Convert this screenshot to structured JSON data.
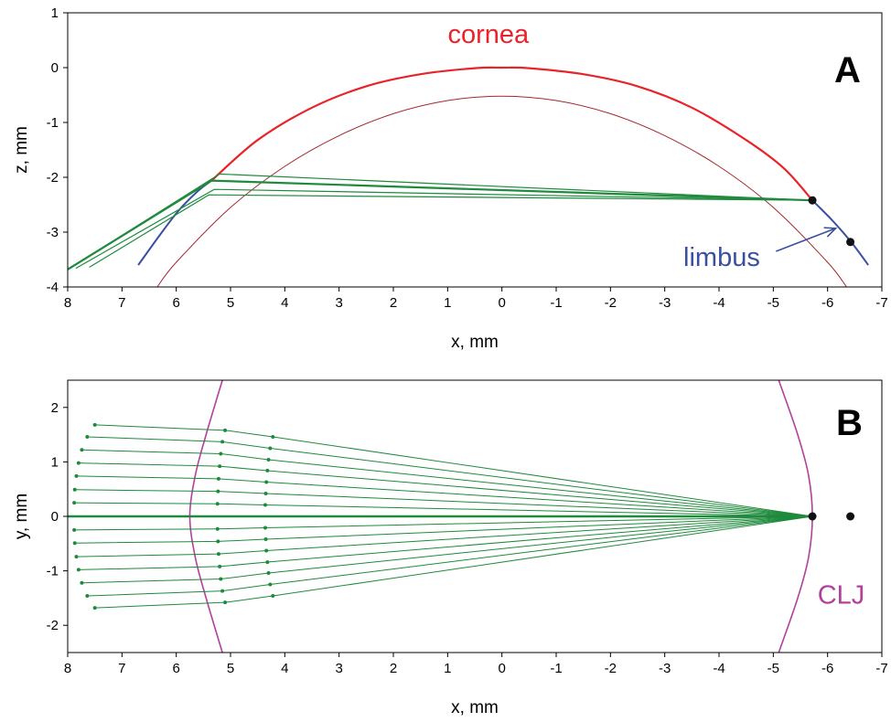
{
  "chart_data": [
    {
      "type": "line",
      "panel_label": "A",
      "xlabel": "x, mm",
      "ylabel": "z, mm",
      "xlim": [
        8,
        -7
      ],
      "ylim": [
        -4,
        1
      ],
      "xticks": [
        "8",
        "7",
        "6",
        "5",
        "4",
        "3",
        "2",
        "1",
        "0",
        "-1",
        "-2",
        "-3",
        "-4",
        "-5",
        "-6",
        "-7"
      ],
      "yticks": [
        "1",
        "0",
        "-1",
        "-2",
        "-3",
        "-4"
      ],
      "colors": {
        "cornea": "#e8232a",
        "cornea_inner": "#a3282f",
        "limbus": "#3b4fa0",
        "rays": "#1e8a3c",
        "points": "#111111"
      },
      "series": [
        {
          "name": "cornea",
          "kind": "curve",
          "x": [
            5.35,
            4.5,
            3.5,
            2.5,
            1.5,
            0.5,
            0,
            -0.5,
            -1.5,
            -2.5,
            -3.5,
            -4.5,
            -5.2,
            -5.72
          ],
          "y": [
            -2.06,
            -1.32,
            -0.73,
            -0.34,
            -0.12,
            -0.01,
            0.0,
            -0.01,
            -0.12,
            -0.34,
            -0.73,
            -1.32,
            -1.84,
            -2.42
          ]
        },
        {
          "kind": "curve",
          "x": [
            6.35,
            6.0,
            5.0,
            4.0,
            3.0,
            2.0,
            1.0,
            0,
            -1.0,
            -2.0,
            -3.0,
            -4.0,
            -5.0,
            -6.0,
            -6.35
          ],
          "y": [
            -4.0,
            -3.55,
            -2.55,
            -1.8,
            -1.24,
            -0.84,
            -0.6,
            -0.52,
            -0.6,
            -0.84,
            -1.24,
            -1.8,
            -2.55,
            -3.55,
            -4.0
          ]
        },
        {
          "name": "limbus",
          "kind": "curve",
          "x": [
            6.7,
            6.3,
            5.95,
            5.6,
            5.35
          ],
          "y": [
            -3.6,
            -3.05,
            -2.6,
            -2.25,
            -2.06
          ]
        },
        {
          "kind": "curve",
          "x": [
            -5.72,
            -6.1,
            -6.45,
            -6.75
          ],
          "y": [
            -2.42,
            -2.8,
            -3.2,
            -3.6
          ]
        }
      ],
      "rays": [
        {
          "width": 2.2,
          "x": [
            8.0,
            5.35,
            -5.72
          ],
          "y": [
            -3.68,
            -2.06,
            -2.42
          ]
        },
        {
          "width": 1.2,
          "x": [
            7.95,
            5.2,
            -5.72
          ],
          "y": [
            -3.65,
            -1.94,
            -2.42
          ]
        },
        {
          "width": 1.2,
          "x": [
            7.85,
            5.3,
            -5.72
          ],
          "y": [
            -3.66,
            -2.22,
            -2.42
          ]
        },
        {
          "width": 1.2,
          "x": [
            7.6,
            5.4,
            -5.72
          ],
          "y": [
            -3.64,
            -2.32,
            -2.42
          ]
        }
      ],
      "points": [
        {
          "x": -5.72,
          "y": -2.42
        },
        {
          "x": -6.42,
          "y": -3.18
        }
      ],
      "annotations": [
        {
          "text": "cornea",
          "x": 0.25,
          "y": 0.45,
          "color": "#e8232a"
        },
        {
          "text": "limbus",
          "x": -4.05,
          "y": -3.62,
          "color": "#3b4fa0"
        }
      ],
      "arrows": [
        {
          "from": [
            -5.05,
            -3.35
          ],
          "to": [
            -6.15,
            -2.93
          ],
          "color": "#3b4fa0"
        }
      ]
    },
    {
      "type": "line",
      "panel_label": "B",
      "xlabel": "x, mm",
      "ylabel": "y, mm",
      "xlim": [
        8,
        -7
      ],
      "ylim": [
        -2.5,
        2.5
      ],
      "xticks": [
        "8",
        "7",
        "6",
        "5",
        "4",
        "3",
        "2",
        "1",
        "0",
        "-1",
        "-2",
        "-3",
        "-4",
        "-5",
        "-6",
        "-7"
      ],
      "yticks": [
        "2",
        "1",
        "0",
        "-1",
        "-2"
      ],
      "colors": {
        "clj": "#b3409b",
        "rays": "#1e8a3c",
        "points": "#111111"
      },
      "series": [
        {
          "name": "CLJ",
          "kind": "curve",
          "x": [
            5.15,
            5.45,
            5.65,
            5.75,
            5.65,
            5.45,
            5.15
          ],
          "y": [
            2.5,
            1.5,
            0.75,
            0.0,
            -0.75,
            -1.5,
            -2.5
          ]
        },
        {
          "kind": "curve",
          "x": [
            -5.1,
            -5.45,
            -5.65,
            -5.72,
            -5.65,
            -5.45,
            -5.1
          ],
          "y": [
            2.5,
            1.5,
            0.75,
            0.0,
            -0.75,
            -1.5,
            -2.5
          ]
        }
      ],
      "ray_fan": {
        "focus": [
          -5.72,
          0.0
        ],
        "y_start": [
          1.68,
          1.46,
          1.22,
          0.98,
          0.74,
          0.49,
          0.25,
          -0.25,
          -0.49,
          -0.74,
          -0.98,
          -1.22,
          -1.46,
          -1.68
        ],
        "x_start": [
          7.5,
          7.64,
          7.74,
          7.8,
          7.84,
          7.87,
          7.88,
          7.88,
          7.87,
          7.84,
          7.8,
          7.74,
          7.64,
          7.5
        ],
        "x_mid1": [
          5.1,
          5.15,
          5.18,
          5.2,
          5.22,
          5.23,
          5.24,
          5.24,
          5.23,
          5.22,
          5.2,
          5.18,
          5.15,
          5.1
        ],
        "y_mid1": [
          1.58,
          1.37,
          1.15,
          0.92,
          0.69,
          0.46,
          0.23,
          -0.23,
          -0.46,
          -0.69,
          -0.92,
          -1.15,
          -1.37,
          -1.58
        ],
        "x_mid2": [
          4.22,
          4.27,
          4.3,
          4.32,
          4.34,
          4.35,
          4.36,
          4.36,
          4.35,
          4.34,
          4.32,
          4.3,
          4.27,
          4.22
        ],
        "y_mid2": [
          1.46,
          1.25,
          1.04,
          0.84,
          0.63,
          0.42,
          0.21,
          -0.21,
          -0.42,
          -0.63,
          -0.84,
          -1.04,
          -1.25,
          -1.46
        ],
        "axis_ray": {
          "x": [
            8.0,
            -5.72
          ],
          "y": [
            0.0,
            0.0
          ]
        }
      },
      "points": [
        {
          "x": -5.72,
          "y": 0.0
        },
        {
          "x": -6.42,
          "y": 0.0
        }
      ],
      "annotations": [
        {
          "text": "CLJ",
          "x": -6.25,
          "y": -1.6,
          "color": "#b3409b"
        }
      ]
    }
  ]
}
